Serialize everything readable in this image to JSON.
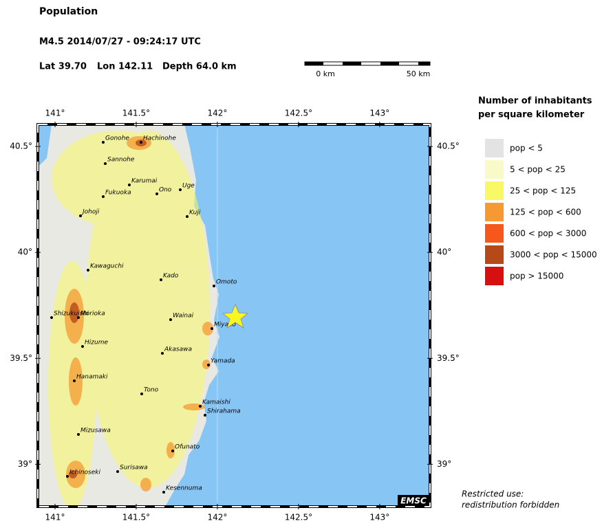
{
  "header": {
    "title": "Population",
    "event": "M4.5  2014/07/27 - 09:24:17 UTC",
    "lat": "Lat 39.70",
    "lon": "Lon 142.11",
    "depth": "Depth  64.0 km"
  },
  "scale_bar": {
    "start": "0 km",
    "end": "50 km"
  },
  "map": {
    "xlim": [
      140.894,
      143.31
    ],
    "ylim": [
      38.8,
      40.604
    ],
    "xticks": [
      {
        "value": 141,
        "label": "141°"
      },
      {
        "value": 141.5,
        "label": "141.5°"
      },
      {
        "value": 142,
        "label": "142°"
      },
      {
        "value": 142.5,
        "label": "142.5°"
      },
      {
        "value": 143,
        "label": "143°"
      }
    ],
    "yticks": [
      {
        "value": 39,
        "label": "39°"
      },
      {
        "value": 39.5,
        "label": "39.5°"
      },
      {
        "value": 40,
        "label": "40°"
      },
      {
        "value": 40.5,
        "label": "40.5°"
      }
    ],
    "cities": [
      "Gonohe",
      "Hachinohe",
      "Sannohe",
      "Karumai",
      "Ono",
      "Uge",
      "Fukuoka",
      "Kuji",
      "Johoji",
      "Kawaguchi",
      "Kado",
      "Omoto",
      "Shizukuishi",
      "Morioka",
      "Wainai",
      "Miyako",
      "Hizume",
      "Akasawa",
      "Yamada",
      "Hanamaki",
      "Tono",
      "Kamaishi",
      "Shirahama",
      "Mizusawa",
      "Ofunato",
      "Surisawa",
      "Ichinoseki",
      "Kesennuma"
    ],
    "logo": "EMSC"
  },
  "legend": {
    "title_line1": "Number of inhabitants",
    "title_line2": "per square kilometer",
    "entries": [
      {
        "label": "pop < 5",
        "color": "#e3e3e3"
      },
      {
        "label": "5 < pop < 25",
        "color": "#fafac8"
      },
      {
        "label": "25 < pop < 125",
        "color": "#f8f866"
      },
      {
        "label": "125 < pop < 600",
        "color": "#f59a33"
      },
      {
        "label": "600 < pop < 3000",
        "color": "#f5581a"
      },
      {
        "label": "3000 < pop < 15000",
        "color": "#b54a18"
      },
      {
        "label": "pop > 15000",
        "color": "#d61010"
      }
    ]
  },
  "footer": {
    "line1": "Restricted use:",
    "line2": "redistribution forbidden"
  }
}
